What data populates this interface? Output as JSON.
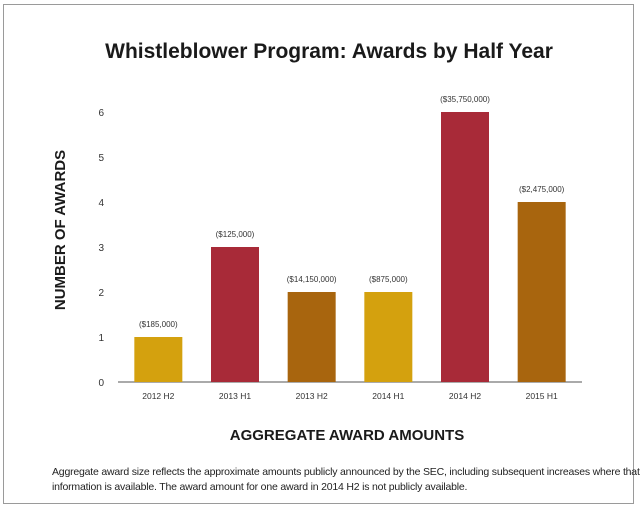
{
  "chart_data": {
    "type": "bar",
    "title": "Whistleblower Program: Awards by Half Year",
    "xlabel": "AGGREGATE AWARD AMOUNTS",
    "ylabel": "NUMBER OF AWARDS",
    "categories": [
      "2012 H2",
      "2013 H1",
      "2013 H2",
      "2014 H1",
      "2014 H2",
      "2015 H1"
    ],
    "values": [
      1,
      3,
      2,
      2,
      6,
      4
    ],
    "data_labels": [
      "($185,000)",
      "($125,000)",
      "($14,150,000)",
      "($875,000)",
      "($35,750,000)",
      "($2,475,000)"
    ],
    "bar_colors": [
      "#d4a10e",
      "#a82a38",
      "#a8650e",
      "#d4a10e",
      "#a82a38",
      "#a8650e"
    ],
    "ylim": [
      0,
      6
    ],
    "yticks": [
      0,
      1,
      2,
      3,
      4,
      5,
      6
    ],
    "grid": false,
    "legend": "none"
  },
  "footnote": "Aggregate award size reflects the approximate amounts publicly announced by the SEC, including subsequent increases where that information is available. The award amount for one award in 2014 H2 is not publicly available."
}
